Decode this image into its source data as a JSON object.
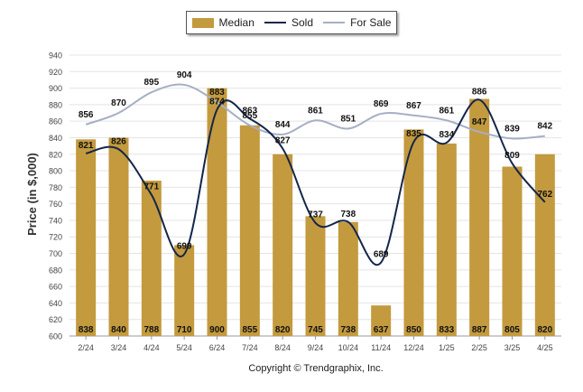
{
  "chart_data": {
    "type": "bar",
    "categories": [
      "2/24",
      "3/24",
      "4/24",
      "5/24",
      "6/24",
      "7/24",
      "8/24",
      "9/24",
      "10/24",
      "11/24",
      "12/24",
      "1/25",
      "2/25",
      "3/25",
      "4/25"
    ],
    "series": [
      {
        "name": "Median",
        "kind": "bar",
        "values": [
          838,
          840,
          788,
          710,
          900,
          855,
          820,
          745,
          738,
          637,
          850,
          833,
          887,
          805,
          820
        ]
      },
      {
        "name": "Sold",
        "kind": "line",
        "values": [
          821,
          826,
          771,
          699,
          874,
          863,
          827,
          737,
          738,
          689,
          835,
          834,
          886,
          809,
          762
        ]
      },
      {
        "name": "For Sale",
        "kind": "line",
        "values": [
          856,
          870,
          895,
          904,
          883,
          855,
          844,
          861,
          851,
          869,
          867,
          861,
          847,
          839,
          842
        ]
      }
    ],
    "ylabel": "Price (in $,000)",
    "xlabel": "",
    "ylim": [
      600,
      940
    ],
    "yticks": [
      600,
      620,
      640,
      660,
      680,
      700,
      720,
      740,
      760,
      780,
      800,
      820,
      840,
      860,
      880,
      900,
      920,
      940
    ],
    "legend_position": "top-center",
    "grid": true,
    "colors": {
      "median": "#c39a3e",
      "sold": "#14264a",
      "for_sale": "#a6afc4"
    }
  },
  "legend": {
    "median": "Median",
    "sold": "Sold",
    "for_sale": "For Sale"
  },
  "copyright": "Copyright © Trendgraphix, Inc."
}
